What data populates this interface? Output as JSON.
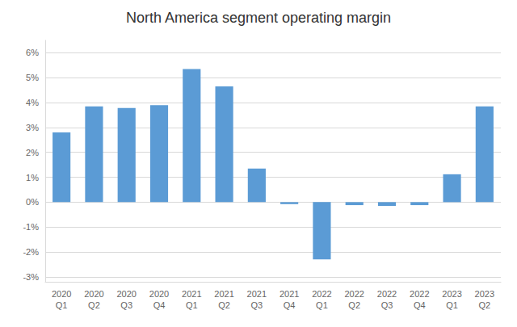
{
  "chart_data": {
    "type": "bar",
    "title": "North America segment operating margin",
    "categories": [
      "2020\nQ1",
      "2020\nQ2",
      "2020\nQ3",
      "2020\nQ4",
      "2021\nQ1",
      "2021\nQ2",
      "2021\nQ3",
      "2021\nQ4",
      "2022\nQ1",
      "2022\nQ2",
      "2022\nQ3",
      "2022\nQ4",
      "2023\nQ1",
      "2023\nQ2"
    ],
    "values": [
      2.8,
      3.85,
      3.78,
      3.9,
      5.35,
      4.65,
      1.35,
      -0.08,
      -2.3,
      -0.12,
      -0.15,
      -0.12,
      1.12,
      3.85
    ],
    "color": "#5B9BD5",
    "ylim": [
      -3.2,
      6.5
    ],
    "yticks": [
      {
        "value": -3,
        "label": "-3%"
      },
      {
        "value": -2,
        "label": "-2%"
      },
      {
        "value": -1,
        "label": "-1%"
      },
      {
        "value": 0,
        "label": "0%"
      },
      {
        "value": 1,
        "label": "1%"
      },
      {
        "value": 2,
        "label": "2%"
      },
      {
        "value": 3,
        "label": "3%"
      },
      {
        "value": 4,
        "label": "4%"
      },
      {
        "value": 5,
        "label": "5%"
      },
      {
        "value": 6,
        "label": "6%"
      }
    ],
    "grid": true
  }
}
